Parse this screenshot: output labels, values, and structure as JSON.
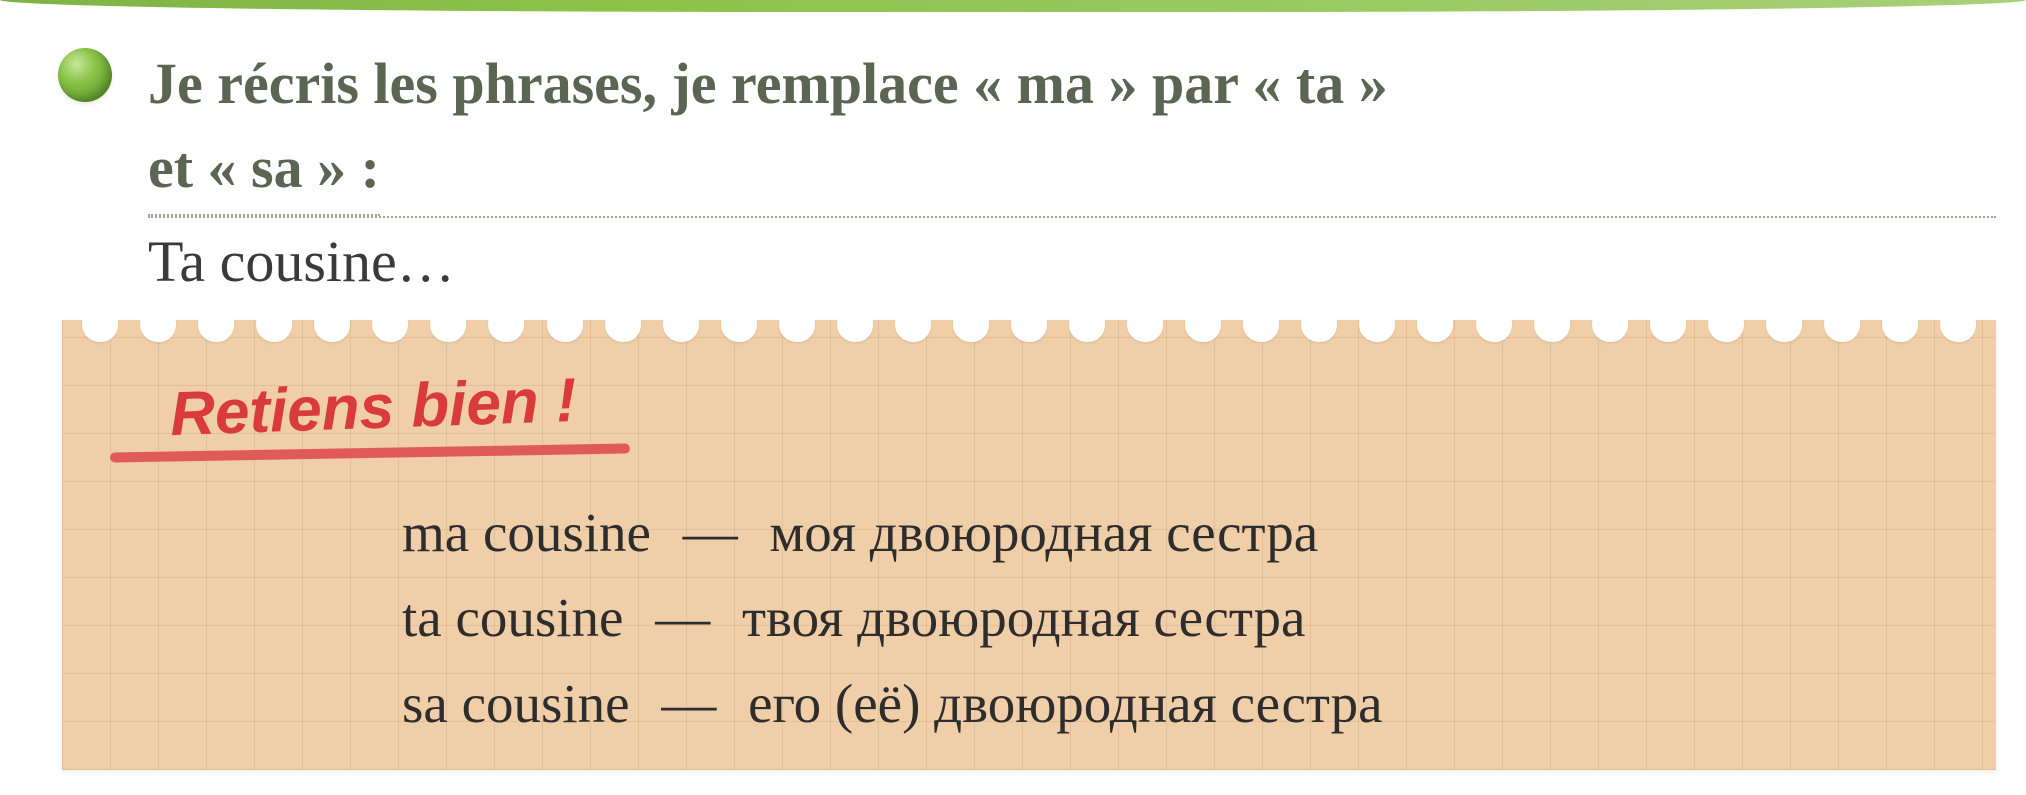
{
  "colors": {
    "heading_text": "#5a6552",
    "body_text": "#3a3a3a",
    "accent_red": "#d93a3a",
    "paper_bg": "#f7e5cf",
    "bullet_green": "#8bc34a",
    "top_edge": "#8bc34a"
  },
  "typography": {
    "heading_fontsize": 58,
    "example_fontsize": 58,
    "retiens_fontsize": 62,
    "vocab_fontsize": 55
  },
  "heading": {
    "line1": "Je récris les phrases, je remplace « ma » par « ta »",
    "line2": "et « sa » :"
  },
  "example": "Ta cousine…",
  "retiens": "Retiens bien !",
  "vocab": [
    {
      "fr": "ma cousine",
      "dash": "—",
      "ru": "моя двоюродная сестра"
    },
    {
      "fr": "ta cousine",
      "dash": "—",
      "ru": "твоя двоюродная сестра"
    },
    {
      "fr": "sa cousine",
      "dash": "—",
      "ru": "его (её) двоюродная сестра"
    }
  ],
  "holes_count": 33
}
